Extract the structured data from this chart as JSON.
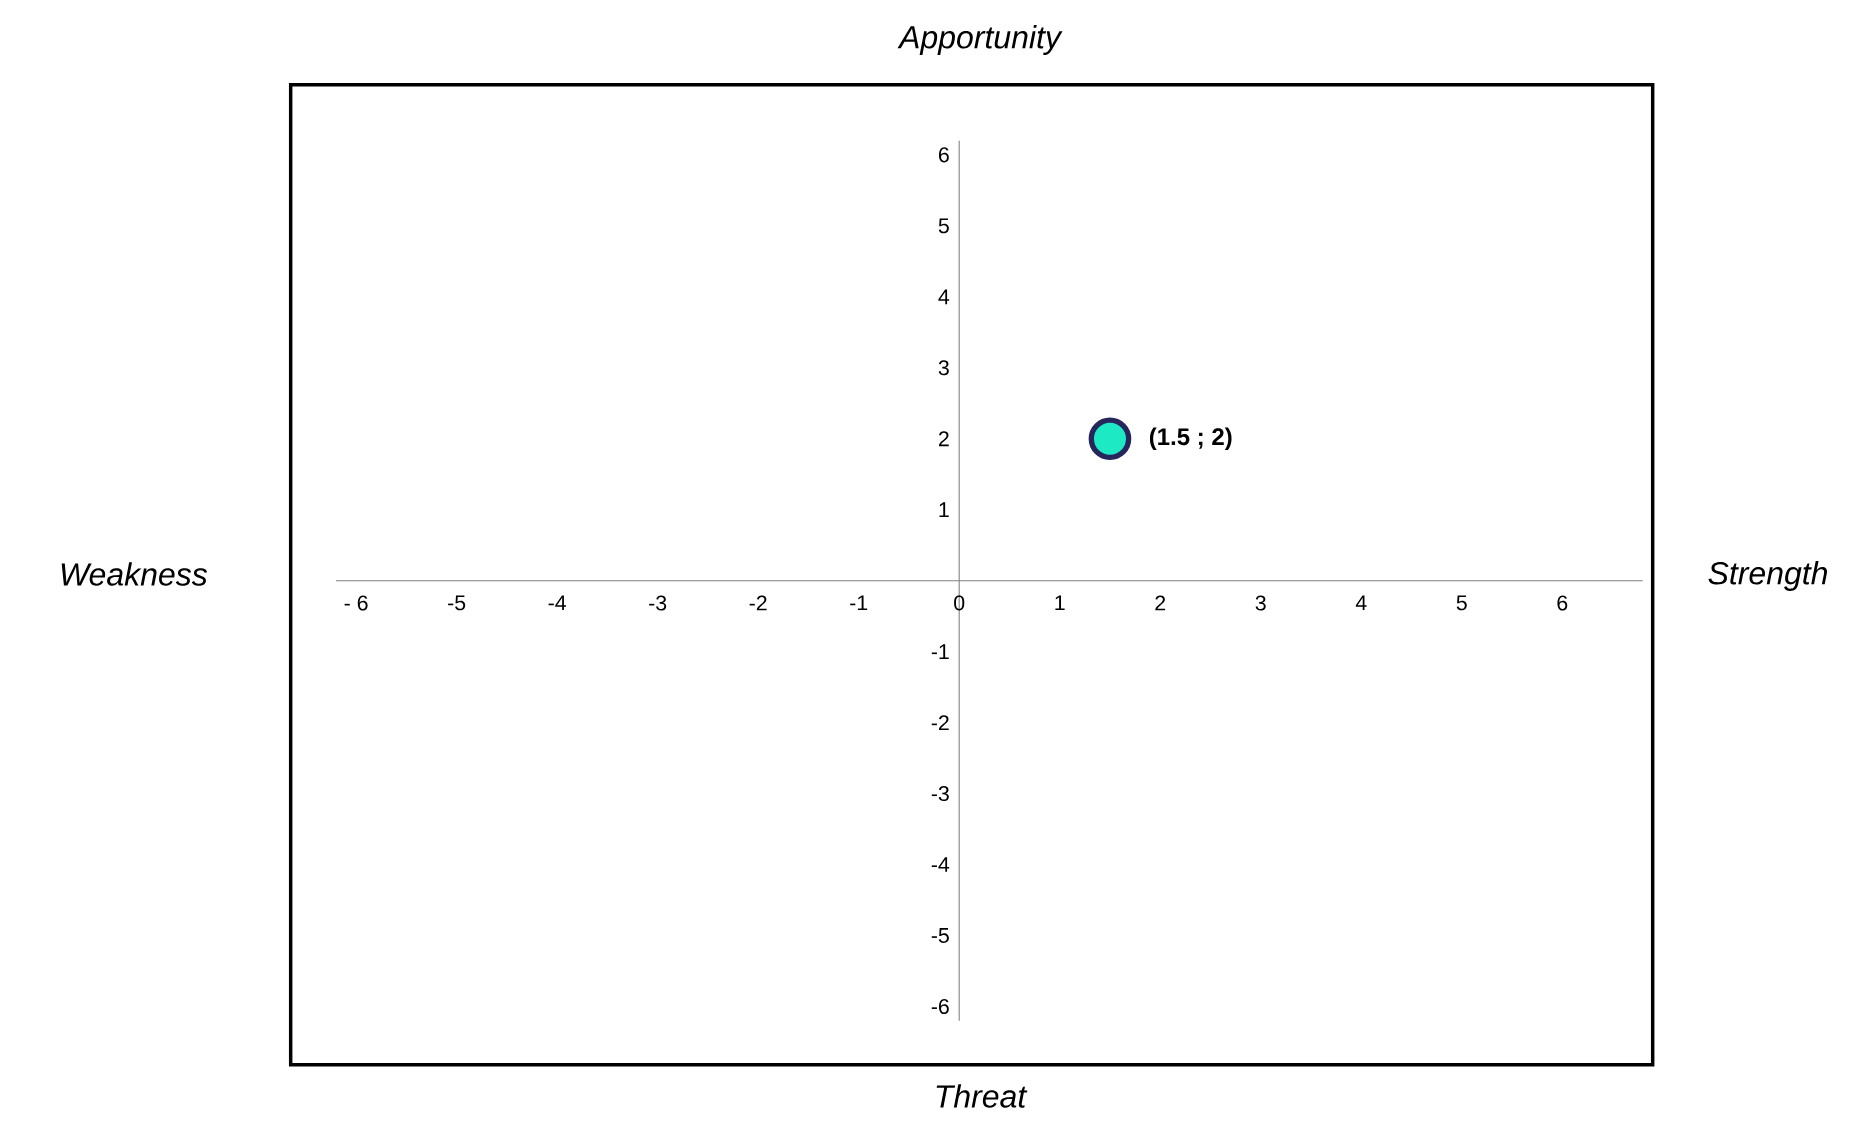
{
  "chart_data": {
    "type": "scatter",
    "x": [
      1.5
    ],
    "values": [
      2
    ],
    "color": "#1de9c5",
    "marker": "circle",
    "xlim": [
      -6.2,
      6.8
    ],
    "ylim": [
      -6.2,
      6.2
    ],
    "xticks": [
      {
        "value": -6,
        "label": "- 6"
      },
      -5,
      -4,
      -3,
      -2,
      -1,
      0,
      1,
      2,
      3,
      4,
      5,
      6
    ],
    "yticks": [
      -6,
      -5,
      -4,
      -3,
      -2,
      -1,
      1,
      2,
      3,
      4,
      5,
      6
    ],
    "annotations": [
      "Apportunity",
      "Threat",
      "Weakness",
      "Strength",
      {
        "text": "(1.5 ; 2)",
        "x": 1.5,
        "y": 2
      }
    ]
  }
}
